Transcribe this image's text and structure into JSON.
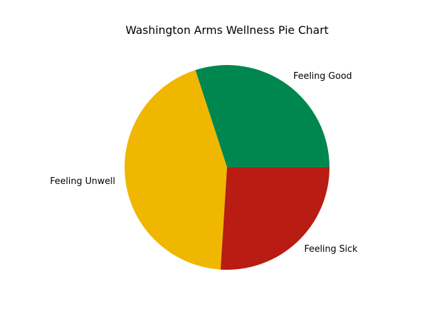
{
  "chart_data": {
    "type": "pie",
    "title": "Washington Arms Wellness Pie Chart",
    "slices": [
      {
        "label": "Feeling Good",
        "value": 30,
        "color": "#00874f"
      },
      {
        "label": "Feeling Unwell",
        "value": 44,
        "color": "#efb700"
      },
      {
        "label": "Feeling Sick",
        "value": 26,
        "color": "#b81c12"
      }
    ],
    "start_angle_deg": 0,
    "direction": "counterclockwise",
    "legend": "none"
  }
}
